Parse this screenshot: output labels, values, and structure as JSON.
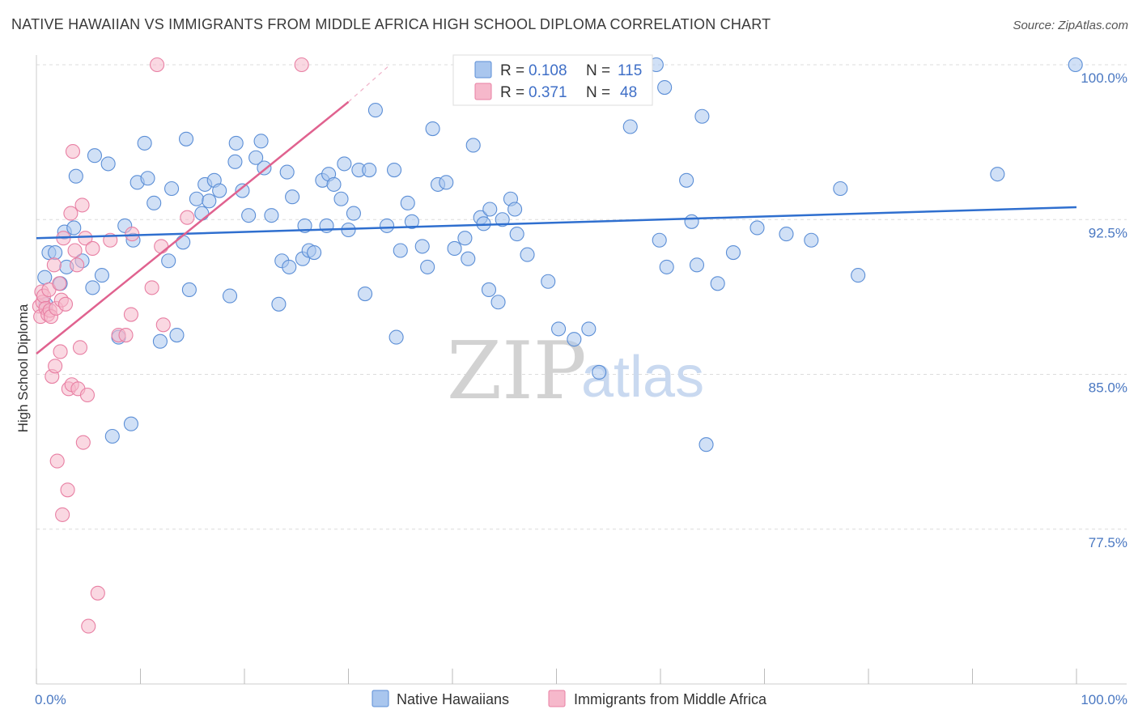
{
  "title": "NATIVE HAWAIIAN VS IMMIGRANTS FROM MIDDLE AFRICA HIGH SCHOOL DIPLOMA CORRELATION CHART",
  "source": "Source: ZipAtlas.com",
  "watermark": {
    "zip": "ZIP",
    "atlas": "atlas"
  },
  "colors": {
    "blue_fill": "#a9c6ee",
    "blue_stroke": "#5b8ed6",
    "blue_line": "#2f6fcf",
    "pink_fill": "#f6b8cb",
    "pink_stroke": "#e87fa3",
    "pink_line": "#e0628f",
    "grid": "#dcdcdc",
    "tick_text": "#4a78c2"
  },
  "legend": {
    "series1": {
      "r_label": "R =",
      "r_value": "0.108",
      "n_label": "N =",
      "n_value": "115"
    },
    "series2": {
      "r_label": "R =",
      "r_value": "0.371",
      "n_label": "N =",
      "n_value": "48"
    }
  },
  "chart_data": {
    "type": "scatter",
    "title": "NATIVE HAWAIIAN VS IMMIGRANTS FROM MIDDLE AFRICA HIGH SCHOOL DIPLOMA CORRELATION CHART",
    "xlabel": "",
    "ylabel": "High School Diploma",
    "xlim": [
      0,
      100
    ],
    "ylim": [
      70.0,
      101.5
    ],
    "x_tick_labels": [
      "0.0%",
      "100.0%"
    ],
    "y_ticks": [
      77.5,
      85.0,
      92.5,
      100.0
    ],
    "y_tick_labels": [
      "77.5%",
      "85.0%",
      "92.5%",
      "100.0%"
    ],
    "grid": true,
    "legend_position": "bottom-center",
    "series": [
      {
        "name": "Native Hawaiians",
        "color": "#a9c6ee",
        "trend": {
          "x": [
            0,
            100
          ],
          "y": [
            91.6,
            93.1
          ]
        },
        "points": [
          [
            0.8,
            89.7
          ],
          [
            0.9,
            88.4
          ],
          [
            1.2,
            90.9
          ],
          [
            1.8,
            90.9
          ],
          [
            2.3,
            89.4
          ],
          [
            2.7,
            91.9
          ],
          [
            2.9,
            90.2
          ],
          [
            3.8,
            94.6
          ],
          [
            3.6,
            92.1
          ],
          [
            4.4,
            90.5
          ],
          [
            5.4,
            89.2
          ],
          [
            5.6,
            95.6
          ],
          [
            6.3,
            89.8
          ],
          [
            6.9,
            95.2
          ],
          [
            7.3,
            82.0
          ],
          [
            7.9,
            86.8
          ],
          [
            8.5,
            92.2
          ],
          [
            9.1,
            82.6
          ],
          [
            9.3,
            91.5
          ],
          [
            9.7,
            94.3
          ],
          [
            10.4,
            96.2
          ],
          [
            10.7,
            94.5
          ],
          [
            11.3,
            93.3
          ],
          [
            11.9,
            86.6
          ],
          [
            12.7,
            90.5
          ],
          [
            13.0,
            94.0
          ],
          [
            13.5,
            86.9
          ],
          [
            14.1,
            91.4
          ],
          [
            14.4,
            96.4
          ],
          [
            14.7,
            89.1
          ],
          [
            15.4,
            93.5
          ],
          [
            15.9,
            92.8
          ],
          [
            16.2,
            94.2
          ],
          [
            16.6,
            93.4
          ],
          [
            17.1,
            94.4
          ],
          [
            17.6,
            93.9
          ],
          [
            18.6,
            88.8
          ],
          [
            19.1,
            95.3
          ],
          [
            19.2,
            96.2
          ],
          [
            19.8,
            93.9
          ],
          [
            20.4,
            92.7
          ],
          [
            21.1,
            95.5
          ],
          [
            21.6,
            96.3
          ],
          [
            21.9,
            95.0
          ],
          [
            22.6,
            92.7
          ],
          [
            23.3,
            88.4
          ],
          [
            23.6,
            90.5
          ],
          [
            24.1,
            94.8
          ],
          [
            24.3,
            90.2
          ],
          [
            24.6,
            93.6
          ],
          [
            25.6,
            90.6
          ],
          [
            25.8,
            92.2
          ],
          [
            26.2,
            91.0
          ],
          [
            26.7,
            90.9
          ],
          [
            27.5,
            94.4
          ],
          [
            27.9,
            92.2
          ],
          [
            28.1,
            94.7
          ],
          [
            28.6,
            94.2
          ],
          [
            29.3,
            93.5
          ],
          [
            29.6,
            95.2
          ],
          [
            30.0,
            92.0
          ],
          [
            30.5,
            92.8
          ],
          [
            31.0,
            94.9
          ],
          [
            31.6,
            88.9
          ],
          [
            32.0,
            94.9
          ],
          [
            32.6,
            97.8
          ],
          [
            33.7,
            92.2
          ],
          [
            34.4,
            94.9
          ],
          [
            34.6,
            86.8
          ],
          [
            35.0,
            91.0
          ],
          [
            35.7,
            93.3
          ],
          [
            36.1,
            92.4
          ],
          [
            37.1,
            91.2
          ],
          [
            37.6,
            90.2
          ],
          [
            38.1,
            96.9
          ],
          [
            38.6,
            94.2
          ],
          [
            39.4,
            94.3
          ],
          [
            40.2,
            91.1
          ],
          [
            41.2,
            91.6
          ],
          [
            41.5,
            90.6
          ],
          [
            42.0,
            96.1
          ],
          [
            42.7,
            92.6
          ],
          [
            43.0,
            92.3
          ],
          [
            43.5,
            89.1
          ],
          [
            43.6,
            93.0
          ],
          [
            44.4,
            88.5
          ],
          [
            44.8,
            92.5
          ],
          [
            45.6,
            93.5
          ],
          [
            46.0,
            93.0
          ],
          [
            46.2,
            91.8
          ],
          [
            47.2,
            90.8
          ],
          [
            49.2,
            89.5
          ],
          [
            50.2,
            87.2
          ],
          [
            51.7,
            86.7
          ],
          [
            53.1,
            87.2
          ],
          [
            54.1,
            85.1
          ],
          [
            57.1,
            97.0
          ],
          [
            59.6,
            100.0
          ],
          [
            59.9,
            91.5
          ],
          [
            60.4,
            98.9
          ],
          [
            60.6,
            90.2
          ],
          [
            62.5,
            94.4
          ],
          [
            63.0,
            92.4
          ],
          [
            63.5,
            90.3
          ],
          [
            64.0,
            97.5
          ],
          [
            64.4,
            81.6
          ],
          [
            65.5,
            89.4
          ],
          [
            67.0,
            90.9
          ],
          [
            69.3,
            92.1
          ],
          [
            72.1,
            91.8
          ],
          [
            74.5,
            91.5
          ],
          [
            77.3,
            94.0
          ],
          [
            79.0,
            89.8
          ],
          [
            92.4,
            94.7
          ],
          [
            99.9,
            100.0
          ]
        ]
      },
      {
        "name": "Immigrants from Middle Africa",
        "color": "#f6b8cb",
        "trend": {
          "x": [
            0,
            30
          ],
          "y": [
            86.0,
            98.2
          ]
        },
        "trend_extension": {
          "x": [
            30,
            34
          ],
          "y": [
            98.2,
            100.0
          ]
        },
        "points": [
          [
            0.3,
            88.3
          ],
          [
            0.4,
            87.8
          ],
          [
            0.5,
            89.0
          ],
          [
            0.6,
            88.5
          ],
          [
            0.7,
            88.8
          ],
          [
            0.9,
            88.2
          ],
          [
            1.1,
            87.9
          ],
          [
            1.2,
            89.1
          ],
          [
            1.3,
            88.1
          ],
          [
            1.4,
            87.8
          ],
          [
            1.5,
            84.9
          ],
          [
            1.7,
            90.3
          ],
          [
            1.9,
            88.2
          ],
          [
            2.0,
            80.8
          ],
          [
            2.2,
            89.4
          ],
          [
            2.3,
            86.1
          ],
          [
            2.4,
            88.6
          ],
          [
            2.6,
            91.6
          ],
          [
            2.8,
            88.4
          ],
          [
            3.0,
            79.4
          ],
          [
            3.1,
            84.3
          ],
          [
            3.3,
            92.8
          ],
          [
            3.4,
            84.5
          ],
          [
            3.5,
            95.8
          ],
          [
            3.7,
            91.0
          ],
          [
            3.9,
            90.3
          ],
          [
            4.0,
            84.3
          ],
          [
            4.2,
            86.3
          ],
          [
            4.4,
            93.2
          ],
          [
            4.5,
            81.7
          ],
          [
            4.7,
            91.6
          ],
          [
            4.9,
            84.0
          ],
          [
            5.0,
            72.8
          ],
          [
            5.4,
            91.1
          ],
          [
            5.9,
            74.4
          ],
          [
            7.1,
            91.5
          ],
          [
            7.9,
            86.9
          ],
          [
            8.6,
            86.9
          ],
          [
            9.1,
            87.9
          ],
          [
            9.2,
            91.8
          ],
          [
            11.1,
            89.2
          ],
          [
            11.6,
            100.0
          ],
          [
            12.0,
            91.2
          ],
          [
            12.2,
            87.4
          ],
          [
            14.5,
            92.6
          ],
          [
            25.5,
            100.0
          ],
          [
            2.5,
            78.2
          ],
          [
            1.8,
            85.4
          ]
        ]
      }
    ]
  }
}
